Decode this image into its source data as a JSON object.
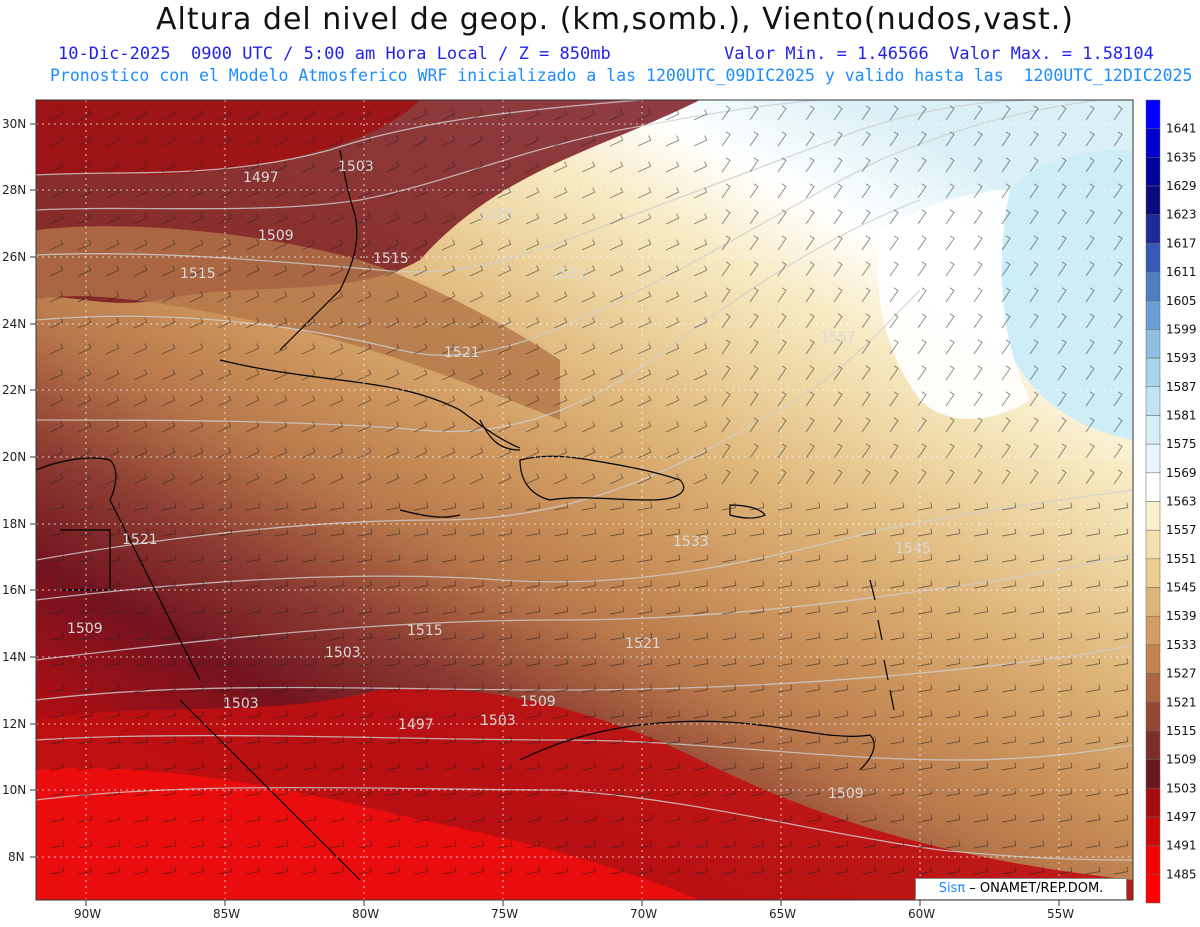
{
  "header": {
    "title": "Altura del nivel de geop. (km,somb.), Viento(nudos,vast.)",
    "line1_left": "10-Dic-2025  0900 UTC / 5:00 am Hora Local / Z = 850mb",
    "line1_right": "Valor Min. = 1.46566  Valor Max. = 1.58104",
    "line2": "Pronostico con el Modelo Atmosferico WRF inicializado a las 1200UTC_09DIC2025 y valido hasta las  1200UTC_12DIC2025"
  },
  "map": {
    "lat_labels": [
      "30N",
      "28N",
      "26N",
      "24N",
      "22N",
      "20N",
      "18N",
      "16N",
      "14N",
      "12N",
      "10N",
      "8N"
    ],
    "lon_labels": [
      "90W",
      "85W",
      "80W",
      "75W",
      "70W",
      "65W",
      "60W",
      "55W"
    ],
    "contour_labels": [
      "1497",
      "1503",
      "1509",
      "1515",
      "1515",
      "1515",
      "1521",
      "1521",
      "1521",
      "1557",
      "1533",
      "1545",
      "1509",
      "1515",
      "1503",
      "1521",
      "1503",
      "1497",
      "1503",
      "1509",
      "1509"
    ]
  },
  "colorbar": {
    "levels": [
      "1641",
      "1635",
      "1629",
      "1623",
      "1617",
      "1611",
      "1605",
      "1599",
      "1593",
      "1587",
      "1581",
      "1575",
      "1569",
      "1563",
      "1557",
      "1551",
      "1545",
      "1539",
      "1533",
      "1527",
      "1521",
      "1515",
      "1509",
      "1503",
      "1497",
      "1491",
      "1485"
    ],
    "colors": [
      "#0000ff",
      "#0000cc",
      "#00009a",
      "#0a0a80",
      "#1e2a9a",
      "#3559b4",
      "#4e7fc4",
      "#6a9fd6",
      "#8fbfe3",
      "#a8d4ec",
      "#c0e4f2",
      "#d6eef7",
      "#e8f6fa",
      "#ffffff",
      "#fbf0cc",
      "#f3e0ae",
      "#eacd92",
      "#dfb67a",
      "#d29d62",
      "#c2834f",
      "#ac6540",
      "#944834",
      "#7c2e29",
      "#6a1720",
      "#a80c10",
      "#cc0808",
      "#ee0505",
      "#ff0000"
    ]
  },
  "credit": {
    "sis": "Sisπ",
    "org": " – ONAMET/REP.DOM."
  }
}
